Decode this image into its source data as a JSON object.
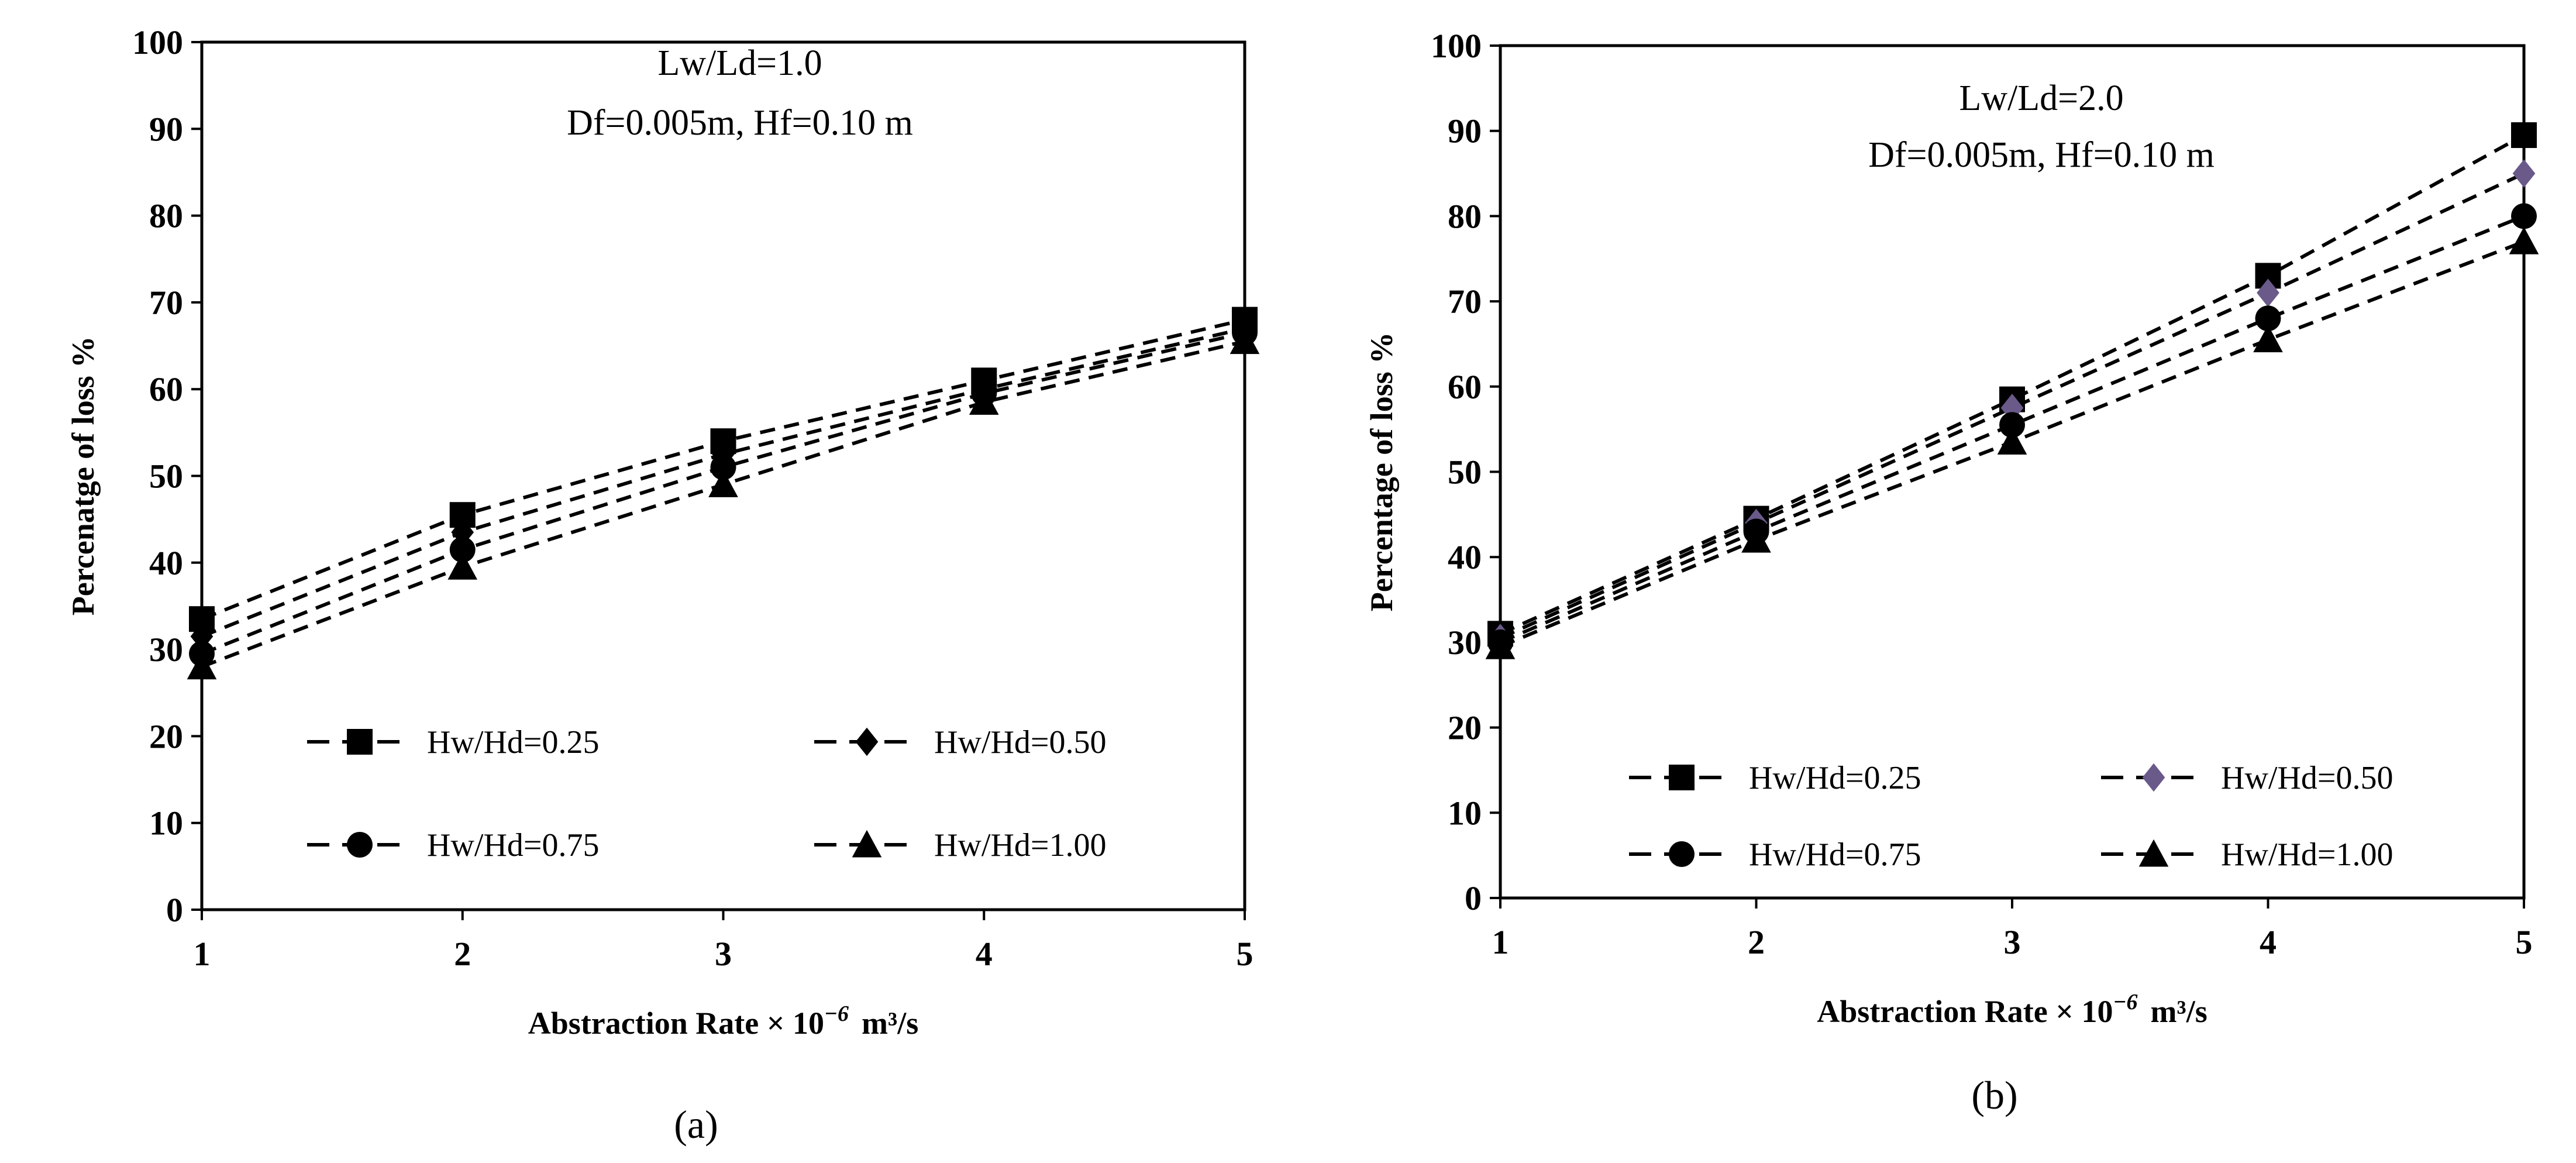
{
  "chart_data": [
    {
      "type": "line",
      "panel_label": "(a)",
      "annotation_lines": [
        "Lw/Ld=1.0",
        "Df=0.005m, Hf=0.10 m"
      ],
      "xlabel_main": "Abstraction Rate × 10",
      "xlabel_exp": "−6",
      "xlabel_unit": "m³/s",
      "ylabel": "Percenatge of loss %",
      "x": [
        1,
        2,
        3,
        4,
        5
      ],
      "xlim": [
        1,
        5
      ],
      "ylim": [
        0,
        100
      ],
      "x_ticks": [
        1,
        2,
        3,
        4,
        5
      ],
      "y_ticks": [
        0,
        10,
        20,
        30,
        40,
        50,
        60,
        70,
        80,
        90,
        100
      ],
      "grid": false,
      "legend_position": "lower",
      "series": [
        {
          "name": "Hw/Hd=0.25",
          "marker": "square",
          "marker_color": "#000000",
          "values": [
            33.5,
            45.5,
            54,
            61,
            68
          ]
        },
        {
          "name": "Hw/Hd=0.50",
          "marker": "diamond",
          "marker_color": "#000000",
          "values": [
            31.5,
            43.5,
            52.5,
            60,
            67
          ]
        },
        {
          "name": "Hw/Hd=0.75",
          "marker": "circle",
          "marker_color": "#000000",
          "values": [
            29.5,
            41.5,
            51,
            59.5,
            66.5
          ]
        },
        {
          "name": "Hw/Hd=1.00",
          "marker": "triangle",
          "marker_color": "#000000",
          "values": [
            28,
            39.5,
            49,
            58.5,
            65.5
          ]
        }
      ]
    },
    {
      "type": "line",
      "panel_label": "(b)",
      "annotation_lines": [
        "Lw/Ld=2.0",
        "Df=0.005m, Hf=0.10 m"
      ],
      "xlabel_main": "Abstraction Rate × 10",
      "xlabel_exp": "−6",
      "xlabel_unit": "m³/s",
      "ylabel": "Percentage of loss %",
      "x": [
        1,
        2,
        3,
        4,
        5
      ],
      "xlim": [
        1,
        5
      ],
      "ylim": [
        0,
        100
      ],
      "x_ticks": [
        1,
        2,
        3,
        4,
        5
      ],
      "y_ticks": [
        0,
        10,
        20,
        30,
        40,
        50,
        60,
        70,
        80,
        90,
        100
      ],
      "grid": false,
      "legend_position": "lower",
      "series": [
        {
          "name": "Hw/Hd=0.25",
          "marker": "square",
          "marker_color": "#000000",
          "values": [
            31,
            44.5,
            58.5,
            73,
            89.5
          ]
        },
        {
          "name": "Hw/Hd=0.50",
          "marker": "diamond",
          "marker_color": "#6a5a8a",
          "values": [
            30.5,
            44,
            57.5,
            71,
            85
          ]
        },
        {
          "name": "Hw/Hd=0.75",
          "marker": "circle",
          "marker_color": "#000000",
          "values": [
            30,
            43,
            55.5,
            68,
            80
          ]
        },
        {
          "name": "Hw/Hd=1.00",
          "marker": "triangle",
          "marker_color": "#000000",
          "values": [
            29.5,
            42,
            53.5,
            65.5,
            77
          ]
        }
      ]
    }
  ]
}
